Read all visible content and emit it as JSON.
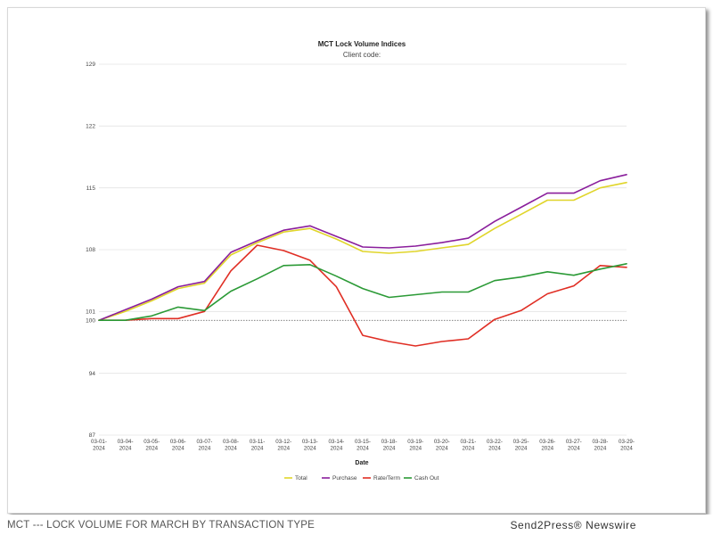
{
  "caption": "MCT --- LOCK VOLUME FOR MARCH BY TRANSACTION TYPE",
  "credit": "Send2Press® Newswire",
  "chart_data": {
    "type": "line",
    "title": "MCT Lock Volume Indices",
    "subtitle": "Client code:",
    "xlabel": "Date",
    "ylabel": "",
    "categories": [
      "03-01-2024",
      "03-04-2024",
      "03-05-2024",
      "03-06-2024",
      "03-07-2024",
      "03-08-2024",
      "03-11-2024",
      "03-12-2024",
      "03-13-2024",
      "03-14-2024",
      "03-15-2024",
      "03-18-2024",
      "03-19-2024",
      "03-20-2024",
      "03-21-2024",
      "03-22-2024",
      "03-25-2024",
      "03-26-2024",
      "03-27-2024",
      "03-28-2024",
      "03-29-2024"
    ],
    "category_labels": [
      [
        "03-01-",
        "2024"
      ],
      [
        "03-04-",
        "2024"
      ],
      [
        "03-05-",
        "2024"
      ],
      [
        "03-06-",
        "2024"
      ],
      [
        "03-07-",
        "2024"
      ],
      [
        "03-08-",
        "2024"
      ],
      [
        "03-11-",
        "2024"
      ],
      [
        "03-12-",
        "2024"
      ],
      [
        "03-13-",
        "2024"
      ],
      [
        "03-14-",
        "2024"
      ],
      [
        "03-15-",
        "2024"
      ],
      [
        "03-18-",
        "2024"
      ],
      [
        "03-19-",
        "2024"
      ],
      [
        "03-20-",
        "2024"
      ],
      [
        "03-21-",
        "2024"
      ],
      [
        "03-22-",
        "2024"
      ],
      [
        "03-25-",
        "2024"
      ],
      [
        "03-26-",
        "2024"
      ],
      [
        "03-27-",
        "2024"
      ],
      [
        "03-28-",
        "2024"
      ],
      [
        "03-29-",
        "2024"
      ]
    ],
    "ylim": [
      87,
      129
    ],
    "yticks": [
      87,
      94,
      100,
      101,
      108,
      115,
      122,
      129
    ],
    "grid": true,
    "baseline": 100,
    "legend_position": "bottom",
    "series": [
      {
        "name": "Total",
        "color": "#e0d52a",
        "values": [
          100,
          101.0,
          102.2,
          103.6,
          104.2,
          107.4,
          108.8,
          110.0,
          110.4,
          109.2,
          107.8,
          107.6,
          107.8,
          108.2,
          108.6,
          110.4,
          112.0,
          113.6,
          113.6,
          115.0,
          115.6
        ]
      },
      {
        "name": "Purchase",
        "color": "#8a1e9c",
        "values": [
          100,
          101.2,
          102.4,
          103.8,
          104.4,
          107.7,
          109.0,
          110.2,
          110.7,
          109.5,
          108.3,
          108.2,
          108.4,
          108.8,
          109.3,
          111.2,
          112.8,
          114.4,
          114.4,
          115.8,
          116.5
        ]
      },
      {
        "name": "Rate/Term",
        "color": "#e02e24",
        "values": [
          100,
          100,
          100.2,
          100.2,
          101.0,
          105.6,
          108.5,
          107.9,
          106.8,
          103.8,
          98.3,
          97.6,
          97.1,
          97.6,
          97.9,
          100.1,
          101.1,
          103.0,
          103.9,
          106.2,
          106.0
        ]
      },
      {
        "name": "Cash Out",
        "color": "#2b9a36",
        "values": [
          100,
          100,
          100.5,
          101.5,
          101.1,
          103.3,
          104.7,
          106.2,
          106.3,
          105.0,
          103.6,
          102.6,
          102.9,
          103.2,
          103.2,
          104.5,
          104.9,
          105.5,
          105.1,
          105.8,
          106.4
        ]
      }
    ]
  }
}
